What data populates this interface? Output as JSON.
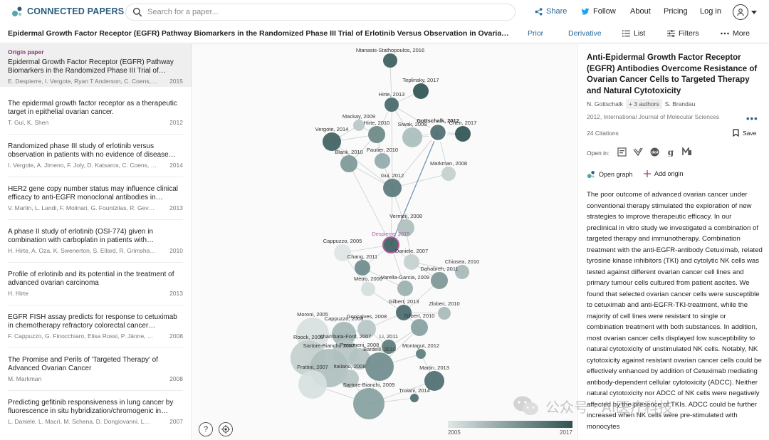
{
  "brand": {
    "name": "CONNECTED PAPERS",
    "accent": "#2b5c7d"
  },
  "search": {
    "placeholder": "Search for a paper..."
  },
  "topnav": {
    "share": "Share",
    "follow": "Follow",
    "about": "About",
    "pricing": "Pricing",
    "login": "Log in"
  },
  "subbar": {
    "title": "Epidermal Growth Factor Receptor (EGFR) Pathway Biomarkers in the Randomized Phase III Trial of Erlotinib Versus Observation in Ovarian Cancer Patients with No Evidence of Disease Progression after First-Line Platinum-Based Chemotherapy",
    "prior": "Prior",
    "derivative": "Derivative",
    "list": "List",
    "filters": "Filters",
    "more": "More"
  },
  "papers": [
    {
      "origin_label": "Origin paper",
      "title": "Epidermal Growth Factor Receptor (EGFR) Pathway Biomarkers in the Randomized Phase III Trial of…",
      "authors": "E. Despierre, I. Vergote, Ryan T Anderson, C. Coens, D…",
      "year": "2015"
    },
    {
      "title": "The epidermal growth factor receptor as a therapeutic target in epithelial ovarian cancer.",
      "authors": "T. Gui, K. Shen",
      "year": "2012"
    },
    {
      "title": "Randomized phase III study of erlotinib versus observation in patients with no evidence of disease…",
      "authors": "I. Vergote, A. Jimeno, F. Joly, D. Katsaros, C. Coens, E…",
      "year": "2014"
    },
    {
      "title": "HER2 gene copy number status may influence clinical efficacy to anti-EGFR monoclonal antibodies in…",
      "authors": "V. Martin, L. Landi, F. Molinari, G. Fountzilas, R. Geva, R…",
      "year": "2013"
    },
    {
      "title": "A phase II study of erlotinib (OSI-774) given in combination with carboplatin in patients with…",
      "authors": "H. Hirte, A. Oza, K. Swenerton, S. Ellard, R. Grimshaw, B…",
      "year": "2010"
    },
    {
      "title": "Profile of erlotinib and its potential in the treatment of advanced ovarian carcinoma",
      "authors": "H. Hirte",
      "year": "2013"
    },
    {
      "title": "EGFR FISH assay predicts for response to cetuximab in chemotherapy refractory colorectal cancer…",
      "authors": "F. Cappuzzo, G. Finocchiaro, Elisa Rossi, P. Jänne, C…",
      "year": "2008"
    },
    {
      "title": "The Promise and Perils of 'Targeted Therapy' of Advanced Ovarian Cancer",
      "authors": "M. Markman",
      "year": "2008"
    },
    {
      "title": "Predicting gefitinib responsiveness in lung cancer by fluorescence in situ hybridization/chromogenic in…",
      "authors": "L. Daniele, L. Macrì, M. Schena, D. Dongiovanni, L…",
      "year": "2007"
    }
  ],
  "graph": {
    "nodes": [
      {
        "label": "Ntanasis-Stathopoulos, 2016",
        "color": "#3d5c5c"
      },
      {
        "label": "Teplinsky, 2017",
        "color": "#2f5252"
      },
      {
        "label": "Hirte, 2013",
        "color": "#46676a"
      },
      {
        "label": "Mackay, 2009",
        "color": "#b9c7c6"
      },
      {
        "label": "Hirte, 2010",
        "color": "#6b8888"
      },
      {
        "label": "Siwak, 2009",
        "color": "#a9bdbc"
      },
      {
        "label": "Gottschalk, 2012",
        "color": "#4d6e70"
      },
      {
        "label": "Chen, 2017",
        "color": "#2f5252"
      },
      {
        "label": "Vergote, 2014",
        "color": "#405f61"
      },
      {
        "label": "Blank, 2010",
        "color": "#7d9797"
      },
      {
        "label": "Pautier, 2010",
        "color": "#93a9a9"
      },
      {
        "label": "Markman, 2008",
        "color": "#c3cfce"
      },
      {
        "label": "Gui, 2012",
        "color": "#5a7879"
      },
      {
        "label": "Vermeij, 2008",
        "color": "#aebfbe"
      },
      {
        "label": "Despierre, 2015",
        "color": "#3e5e60"
      },
      {
        "label": "Cappuzzo, 2005",
        "color": "#dde5e4"
      },
      {
        "label": "Daniele, 2007",
        "color": "#c3cfce"
      },
      {
        "label": "Chang, 2011",
        "color": "#6e8b8b"
      },
      {
        "label": "Chiosea, 2010",
        "color": "#a6b9b8"
      },
      {
        "label": "Dahabreh, 2011",
        "color": "#7d9696"
      },
      {
        "label": "Metro, 2006",
        "color": "#d4dedd"
      },
      {
        "label": "Varella-Garcia, 2009",
        "color": "#9ab0af"
      },
      {
        "label": "Gilbert, 2013",
        "color": "#4a6a6c"
      },
      {
        "label": "Zlobec, 2010",
        "color": "#a7bab9"
      },
      {
        "label": "Moroni, 2005",
        "color": "#d8e1e0"
      },
      {
        "label": "Goncalves, 2008",
        "color": "#b6c6c5"
      },
      {
        "label": "Gilbert, 2010",
        "color": "#86a0a0"
      },
      {
        "label": "Cappuzzo, 2008",
        "color": "#a4b7b6"
      },
      {
        "label": "Khambata-Ford, 2007",
        "color": "#b7c6c5"
      },
      {
        "label": "Li, 2011",
        "color": "#5c7a7b"
      },
      {
        "label": "Personeni, 2008",
        "color": "#b3c3c2"
      },
      {
        "label": "Roock, 2008",
        "color": "#c3cfce"
      },
      {
        "label": "Montagut, 2012",
        "color": "#5e7c7d"
      },
      {
        "label": "Bardelli, 2010",
        "color": "#6f8c8c"
      },
      {
        "label": "Sartore-Bianchi, 2007",
        "color": "#aebfbe"
      },
      {
        "label": "Italiano, 2008",
        "color": "#b6c5c4"
      },
      {
        "label": "Martin, 2013",
        "color": "#4d6d6f"
      },
      {
        "label": "Frattini, 2007",
        "color": "#d7e0df"
      },
      {
        "label": "Troiani, 2014",
        "color": "#4e6d6f"
      },
      {
        "label": "Sartore-Bianchi, 2009",
        "color": "#86a0a0"
      }
    ],
    "legend": {
      "min": "2005",
      "max": "2017"
    }
  },
  "detail": {
    "title": "Anti-Epidermal Growth Factor Receptor (EGFR) Antibodies Overcome Resistance of Ovarian Cancer Cells to Targeted Therapy and Natural Cytotoxicity",
    "author1": "N. Gottschalk",
    "more_authors": "+ 3 authors",
    "author2": "S. Brandau",
    "venue": "2012, International Journal of Molecular Sciences",
    "citations": "24 Citations",
    "save": "Save",
    "open_in": "Open in:",
    "open_graph": "Open graph",
    "add_origin": "Add origin",
    "abstract": "The poor outcome of advanced ovarian cancer under conventional therapy stimulated the exploration of new strategies to improve therapeutic efficacy. In our preclinical in vitro study we investigated a combination of targeted therapy and immunotherapy. Combination treatment with the anti-EGFR-antibody Cetuximab, related tyrosine kinase inhibitors (TKI) and cytolytic NK cells was tested against different ovarian cancer cell lines and primary tumour cells cultured from patient ascites. We found that selected ovarian cancer cells were susceptible to cetuximab and anti-EGFR-TKI-treatment, while the majority of cell lines were resistant to single or combination treatment with both substances. In addition, most ovarian cancer cells displayed low susceptibility to natural cytotoxicity of unstimulated NK cells. Notably, NK cytotoxicity against resistant ovarian cancer cells could be effectively enhanced by addition of Cetuximab mediating antibody-dependent cellular cytotoxicity (ADCC). Neither natural cytotoxicity nor ADCC of NK cells were negatively affected by the presence of TKIs. ADCC could be further increased when NK cells were pre-stimulated with monocytes"
  },
  "watermark": {
    "text": "公众号 · AI医疗科技"
  }
}
